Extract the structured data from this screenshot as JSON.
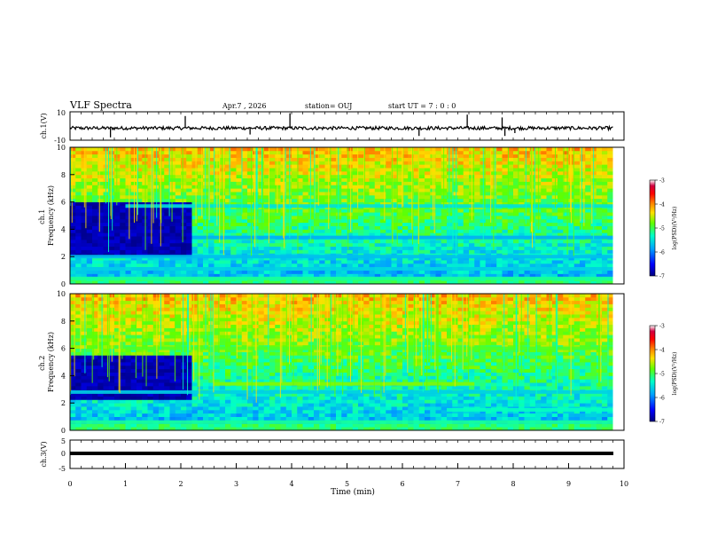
{
  "header": {
    "title": "VLF Spectra",
    "date": "Apr.7 , 2026",
    "station": "station= OUJ",
    "start": "start UT = 7 : 0 : 0"
  },
  "colorbar": {
    "label": "log(PSD)(V²/Hz)",
    "ticks": [
      "-3",
      "-4",
      "-5",
      "-6",
      "-7"
    ],
    "colors": [
      "#000080",
      "#0000ff",
      "#00a0ff",
      "#00ffc8",
      "#60ff00",
      "#ffe000",
      "#ff8000",
      "#ff0000",
      "#d00040",
      "#ffffff"
    ]
  },
  "chart_data": [
    {
      "type": "line",
      "name": "ch1-waveform",
      "ylabel": "ch.1(V)",
      "xlim": [
        0,
        10
      ],
      "ylim": [
        -10,
        10
      ],
      "yticks": [
        "10",
        "-10"
      ],
      "baseline": -1.5,
      "spikes": [
        {
          "x": 0.73,
          "y": -8
        },
        {
          "x": 2.08,
          "y": 7
        },
        {
          "x": 3.25,
          "y": -6
        },
        {
          "x": 3.97,
          "y": 9
        },
        {
          "x": 6.3,
          "y": -7
        },
        {
          "x": 7.17,
          "y": 8
        },
        {
          "x": 7.8,
          "y": 6
        },
        {
          "x": 7.85,
          "y": -7
        },
        {
          "x": 8.03,
          "y": -5
        }
      ]
    },
    {
      "type": "heatmap",
      "name": "ch1-spectrogram",
      "ylabel": "ch.1\nFrequency (kHz)",
      "xlim": [
        0,
        10
      ],
      "ylim": [
        0,
        10
      ],
      "yticks": [
        "0",
        "2",
        "4",
        "6",
        "8",
        "10"
      ],
      "zlabel": "log(PSD)(V²/Hz)",
      "zlim": [
        -7,
        -3
      ],
      "dark_region": {
        "x": [
          0,
          2.2
        ],
        "f": [
          2,
          6
        ]
      },
      "bands_khz": [
        {
          "f": 5.7,
          "from": 1.0,
          "to": 9.8,
          "level": -5.5
        },
        {
          "f": 3.4,
          "from": 2.2,
          "to": 9.8,
          "level": -5.8
        },
        {
          "f": 2.0,
          "from": 0,
          "to": 9.8,
          "level": -5.7
        },
        {
          "f": 1.1,
          "from": 0,
          "to": 9.8,
          "level": -5.6
        },
        {
          "f": 0.4,
          "from": 0,
          "to": 9.8,
          "level": -5.2
        }
      ]
    },
    {
      "type": "heatmap",
      "name": "ch2-spectrogram",
      "ylabel": "ch.2\nFrequency (kHz)",
      "xlim": [
        0,
        10
      ],
      "ylim": [
        0,
        10
      ],
      "yticks": [
        "0",
        "2",
        "4",
        "6",
        "8",
        "10"
      ],
      "zlabel": "log(PSD)(V²/Hz)",
      "zlim": [
        -7,
        -3
      ],
      "dark_region": {
        "x": [
          0,
          2.2
        ],
        "f": [
          2.2,
          5.6
        ]
      },
      "bands_khz": [
        {
          "f": 6.0,
          "from": 1.0,
          "to": 9.8,
          "level": -4.9
        },
        {
          "f": 3.4,
          "from": 2.6,
          "to": 7.3,
          "level": -4.7
        },
        {
          "f": 2.8,
          "from": 0,
          "to": 9.8,
          "level": -5.6
        },
        {
          "f": 1.5,
          "from": 6.8,
          "to": 9.8,
          "level": -5.3
        },
        {
          "f": 0.6,
          "from": 0,
          "to": 9.8,
          "level": -5.2
        }
      ]
    },
    {
      "type": "line",
      "name": "ch3-waveform",
      "ylabel": "ch.3(V)",
      "xlim": [
        0,
        10
      ],
      "ylim": [
        -5,
        5
      ],
      "yticks": [
        "5",
        "0",
        "-5"
      ],
      "baseline": -0.5,
      "xlabel": "Time (min)",
      "xticks": [
        "0",
        "1",
        "2",
        "3",
        "4",
        "5",
        "6",
        "7",
        "8",
        "9",
        "10"
      ]
    }
  ]
}
